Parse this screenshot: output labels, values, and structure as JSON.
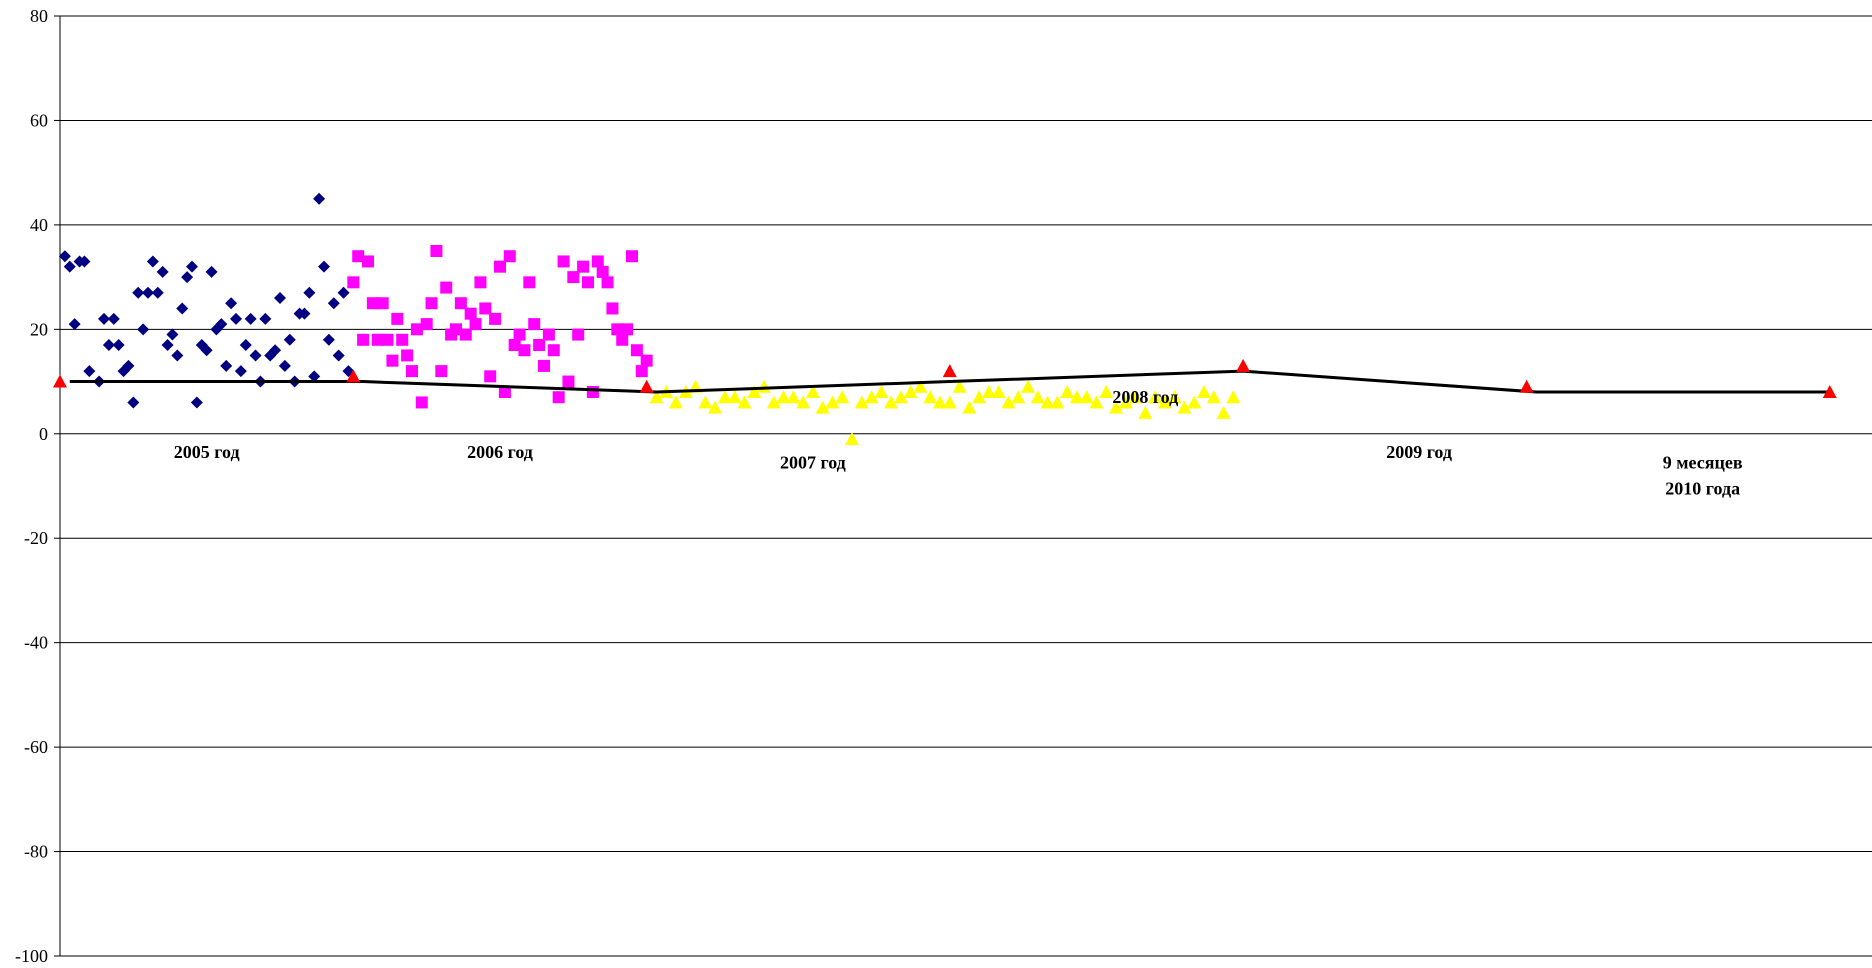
{
  "chart_data": {
    "type": "scatter",
    "title": "",
    "xlabel": "",
    "ylabel": "",
    "ylim": [
      -100,
      80
    ],
    "yticks": [
      80,
      60,
      40,
      20,
      0,
      -20,
      -40,
      -60,
      -80,
      -100
    ],
    "ytick_labels": [
      "80",
      "60",
      "40",
      "20",
      "0",
      "-20",
      "-40",
      "-60",
      "-80",
      "-100"
    ],
    "xlim": [
      0,
      180
    ],
    "grid": "horizontal",
    "legend": "none",
    "colors": {
      "s2005": "#000080",
      "s2006": "#ff00ff",
      "s2007": "#ffff00",
      "s2008": "#00ffff",
      "s2009": "#800080",
      "s2010": "#800000",
      "marker_red": "#ff0000",
      "line": "#000000",
      "grid": "#000000"
    },
    "annotations": [
      {
        "text": "2005 год",
        "x": 15,
        "y": -3.5
      },
      {
        "text": "2006 год",
        "x": 45,
        "y": -3.5
      },
      {
        "text": "2007 год",
        "x": 77,
        "y": -5.5
      },
      {
        "text": "2008 год",
        "x": 111,
        "y": 7
      },
      {
        "text": "2009 год",
        "x": 139,
        "y": -3.5
      },
      {
        "text": "9 месяцев",
        "x": 168,
        "y": -5.5
      },
      {
        "text": "2010 года",
        "x": 168,
        "y": -10.5
      }
    ],
    "avg_line": {
      "x": [
        1,
        31,
        61,
        91,
        121,
        151,
        181
      ],
      "y": [
        10,
        10,
        8,
        10,
        12,
        8,
        8
      ]
    },
    "red_markers": {
      "x": [
        0,
        30,
        60,
        91,
        121,
        150,
        181
      ],
      "y": [
        10,
        11,
        9,
        12,
        13,
        9,
        8
      ]
    },
    "series": [
      {
        "key": "s2005",
        "marker": "diamond",
        "x": [
          0.5,
          1,
          1.5,
          2,
          2.5,
          3,
          4,
          4.5,
          5,
          5.5,
          6,
          6.5,
          7,
          7.5,
          8,
          8.5,
          9,
          9.5,
          10,
          10.5,
          11,
          11.5,
          12,
          12.5,
          13,
          13.5,
          14,
          14.5,
          15,
          15.5,
          16,
          16.5,
          17,
          17.5,
          18,
          18.5,
          19,
          19.5,
          20,
          20.5,
          21,
          21.5,
          22,
          22.5,
          23,
          23.5,
          24,
          24.5,
          25,
          25.5,
          26,
          26.5,
          27,
          27.5,
          28,
          28.5,
          29,
          29.5
        ],
        "y": [
          34,
          32,
          21,
          33,
          33,
          12,
          10,
          22,
          17,
          22,
          17,
          12,
          13,
          6,
          27,
          20,
          27,
          33,
          27,
          31,
          17,
          19,
          15,
          24,
          30,
          32,
          6,
          17,
          16,
          31,
          20,
          21,
          13,
          25,
          22,
          12,
          17,
          22,
          15,
          10,
          22,
          15,
          16,
          26,
          13,
          18,
          10,
          23,
          23,
          27,
          11,
          45,
          32,
          18,
          25,
          15,
          27,
          12
        ]
      },
      {
        "key": "s2006",
        "marker": "square",
        "x": [
          30,
          30.5,
          31,
          31.5,
          32,
          32.5,
          33,
          33.5,
          34,
          34.5,
          35,
          35.5,
          36,
          36.5,
          37,
          37.5,
          38,
          38.5,
          39,
          39.5,
          40,
          40.5,
          41,
          41.5,
          42,
          42.5,
          43,
          43.5,
          44,
          44.5,
          45,
          45.5,
          46,
          46.5,
          47,
          47.5,
          48,
          48.5,
          49,
          49.5,
          50,
          50.5,
          51,
          51.5,
          52,
          52.5,
          53,
          53.5,
          54,
          54.5,
          55,
          55.5,
          56,
          56.5,
          57,
          57.5,
          58,
          58.5,
          59,
          59.5,
          60
        ],
        "y": [
          29,
          34,
          18,
          33,
          25,
          18,
          25,
          18,
          14,
          22,
          18,
          15,
          12,
          20,
          6,
          21,
          25,
          35,
          12,
          28,
          19,
          20,
          25,
          19,
          23,
          21,
          29,
          24,
          11,
          22,
          32,
          8,
          34,
          17,
          19,
          16,
          29,
          21,
          17,
          13,
          19,
          16,
          7,
          33,
          10,
          30,
          19,
          32,
          29,
          8,
          33,
          31,
          29,
          24,
          20,
          18,
          20,
          34,
          16,
          12,
          14
        ]
      },
      {
        "key": "s2007",
        "marker": "triangle",
        "x": [
          61,
          62,
          63,
          64,
          65,
          66,
          67,
          68,
          69,
          70,
          71,
          72,
          73,
          74,
          75,
          76,
          77,
          78,
          79,
          80,
          81,
          82,
          83,
          84,
          85,
          86,
          87,
          88,
          89,
          90,
          91,
          92,
          93,
          94,
          95,
          96,
          97,
          98,
          99,
          100,
          101,
          102,
          103,
          104,
          105,
          106,
          107,
          108,
          109,
          110,
          111,
          112,
          113,
          114,
          115,
          116,
          117,
          118,
          119,
          120
        ],
        "y": [
          7,
          8,
          6,
          8,
          9,
          6,
          5,
          7,
          7,
          6,
          8,
          9,
          6,
          7,
          7,
          6,
          8,
          5,
          6,
          7,
          -1,
          6,
          7,
          8,
          6,
          7,
          8,
          9,
          7,
          6,
          6,
          9,
          5,
          7,
          8,
          8,
          6,
          7,
          9,
          7,
          6,
          6,
          8,
          7,
          7,
          6,
          8,
          5,
          6,
          7,
          4,
          7,
          6,
          7,
          5,
          6,
          8,
          7,
          4,
          7
        ]
      }
    ]
  }
}
